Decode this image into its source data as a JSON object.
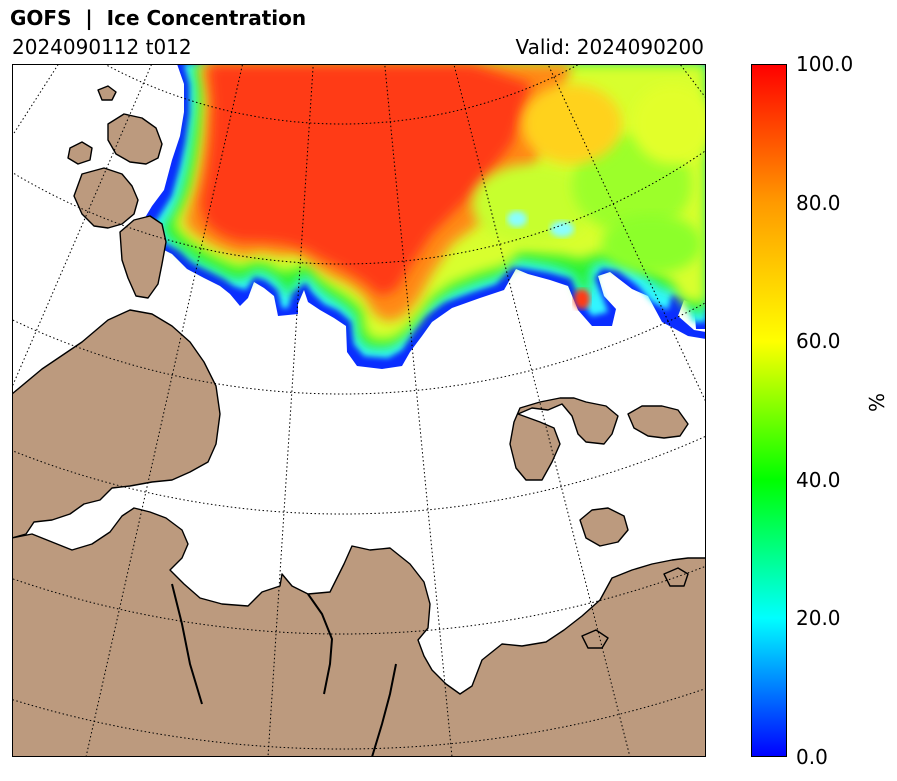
{
  "header": {
    "title": "GOFS  |  Ice Concentration",
    "run": "2024090112 t012",
    "valid": "Valid: 2024090200"
  },
  "colorbar": {
    "label": "%",
    "ticks": [
      "100.0",
      "80.0",
      "60.0",
      "40.0",
      "20.0",
      "0.0"
    ],
    "range": [
      0,
      100
    ],
    "colors": [
      "#0000ff",
      "#00ffff",
      "#00ff00",
      "#ffff00",
      "#ff8000",
      "#ff0000"
    ]
  },
  "map": {
    "land_color": "#bc9a7e",
    "ocean_color": "#ffffff",
    "graticule_style": "dotted"
  }
}
